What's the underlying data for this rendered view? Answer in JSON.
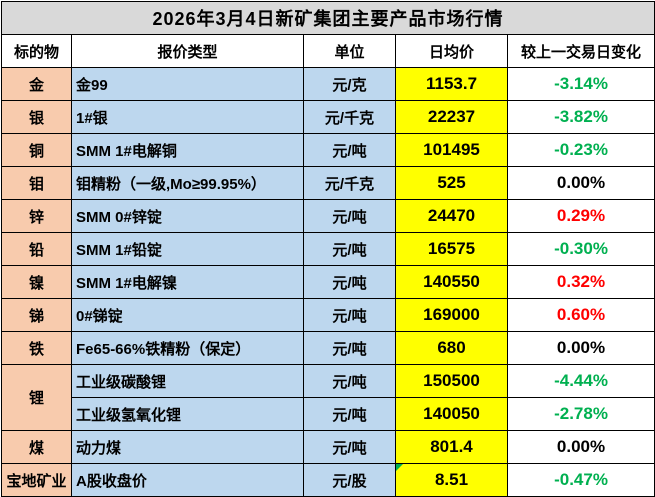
{
  "title": "2026年3月4日新矿集团主要产品市场行情",
  "columns": [
    "标的物",
    "报价类型",
    "单位",
    "日均价",
    "较上一交易日变化"
  ],
  "rows": [
    {
      "target": "金",
      "quote_type": "金99",
      "unit": "元/克",
      "avg_price": "1153.7",
      "change": "-3.14%",
      "trend": "down"
    },
    {
      "target": "银",
      "quote_type": "1#银",
      "unit": "元/千克",
      "avg_price": "22237",
      "change": "-3.82%",
      "trend": "down"
    },
    {
      "target": "铜",
      "quote_type": "SMM 1#电解铜",
      "unit": "元/吨",
      "avg_price": "101495",
      "change": "-0.23%",
      "trend": "down"
    },
    {
      "target": "钼",
      "quote_type": "钼精粉（一级,Mo≥99.95%）",
      "unit": "元/千克",
      "avg_price": "525",
      "change": "0.00%",
      "trend": "flat"
    },
    {
      "target": "锌",
      "quote_type": "SMM 0#锌锭",
      "unit": "元/吨",
      "avg_price": "24470",
      "change": "0.29%",
      "trend": "up"
    },
    {
      "target": "铅",
      "quote_type": "SMM 1#铅锭",
      "unit": "元/吨",
      "avg_price": "16575",
      "change": "-0.30%",
      "trend": "down"
    },
    {
      "target": "镍",
      "quote_type": "SMM 1#电解镍",
      "unit": "元/吨",
      "avg_price": "140550",
      "change": "0.32%",
      "trend": "up"
    },
    {
      "target": "锑",
      "quote_type": "0#锑锭",
      "unit": "元/吨",
      "avg_price": "169000",
      "change": "0.60%",
      "trend": "up"
    },
    {
      "target": "铁",
      "quote_type": "Fe65-66%铁精粉（保定）",
      "unit": "元/吨",
      "avg_price": "680",
      "change": "0.00%",
      "trend": "flat"
    },
    {
      "target": "锂",
      "target_rowspan": 2,
      "quote_type": "工业级碳酸锂",
      "unit": "元/吨",
      "avg_price": "150500",
      "change": "-4.44%",
      "trend": "down"
    },
    {
      "target": null,
      "quote_type": "工业级氢氧化锂",
      "unit": "元/吨",
      "avg_price": "140050",
      "change": "-2.78%",
      "trend": "down"
    },
    {
      "target": "煤",
      "quote_type": "动力煤",
      "unit": "元/吨",
      "avg_price": "801.4",
      "change": "0.00%",
      "trend": "flat"
    },
    {
      "target": "宝地矿业",
      "quote_type": "A股收盘价",
      "unit": "元/股",
      "avg_price": "8.51",
      "change": "-0.47%",
      "trend": "down",
      "corner_marker": true
    }
  ],
  "colors": {
    "title_bg": "#D9D9D9",
    "header_bg": "#FFFFFF",
    "target_col_bg": "#F8CBAD",
    "quote_col_bg": "#BDD7EE",
    "unit_col_bg": "#BDD7EE",
    "price_col_bg": "#FFFF00",
    "change_up": "#FF0000",
    "change_down": "#00B050",
    "change_flat": "#000000",
    "border": "#000000",
    "marker": "#00B050"
  }
}
